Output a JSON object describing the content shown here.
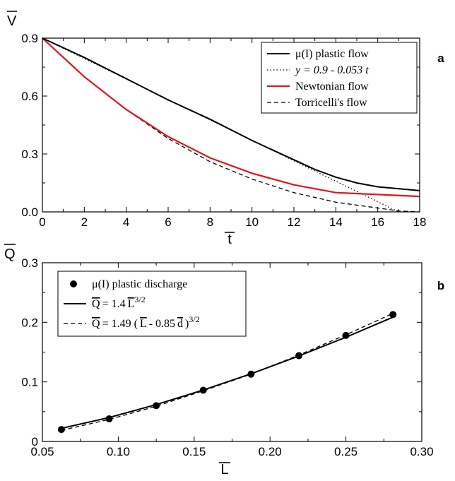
{
  "chart_data": [
    {
      "panel_label": "a",
      "type": "line",
      "ylabel": "V",
      "xlabel": "t",
      "xlim": [
        0,
        18
      ],
      "ylim": [
        0,
        0.9
      ],
      "xticks": [
        "0",
        "2",
        "4",
        "6",
        "8",
        "10",
        "12",
        "14",
        "16",
        "18"
      ],
      "yticks": [
        "0.0",
        "0.3",
        "0.6",
        "0.9"
      ],
      "legend_position": "top-right",
      "grid": false,
      "series": [
        {
          "name": "μ(I) plastic flow",
          "style": "solid",
          "color": "#000000",
          "x": [
            0,
            2,
            4,
            6,
            8,
            10,
            12,
            13,
            14,
            15,
            16,
            18
          ],
          "y": [
            0.9,
            0.8,
            0.69,
            0.58,
            0.48,
            0.37,
            0.27,
            0.22,
            0.18,
            0.15,
            0.13,
            0.11
          ]
        },
        {
          "name": "y = 0.9 - 0.053 t",
          "style": "dotted",
          "color": "#000000",
          "x": [
            0,
            17
          ],
          "y": [
            0.9,
            0.0
          ]
        },
        {
          "name": "Newtonian flow",
          "style": "solid",
          "color": "#e0141e",
          "x": [
            0,
            1,
            2,
            4,
            6,
            8,
            10,
            12,
            14,
            16,
            18
          ],
          "y": [
            0.9,
            0.8,
            0.7,
            0.53,
            0.39,
            0.28,
            0.2,
            0.14,
            0.1,
            0.09,
            0.08
          ]
        },
        {
          "name": "Torricelli's flow",
          "style": "dashed",
          "color": "#000000",
          "x": [
            0,
            2,
            4,
            6,
            8,
            10,
            12,
            14,
            16,
            17,
            18
          ],
          "y": [
            0.9,
            0.7,
            0.53,
            0.38,
            0.26,
            0.17,
            0.1,
            0.05,
            0.02,
            0.005,
            0.0
          ]
        }
      ]
    },
    {
      "panel_label": "b",
      "type": "scatter",
      "ylabel": "Q",
      "xlabel": "L",
      "xlim": [
        0.05,
        0.3
      ],
      "ylim": [
        0,
        0.3
      ],
      "xticks": [
        "0.05",
        "0.10",
        "0.15",
        "0.20",
        "0.25",
        "0.30"
      ],
      "yticks": [
        "0",
        "0.1",
        "0.2",
        "0.3"
      ],
      "legend_position": "top-left",
      "grid": false,
      "series": [
        {
          "name": "μ(I) plastic discharge",
          "style": "markers",
          "color": "#000000",
          "x": [
            0.0625,
            0.094,
            0.125,
            0.156,
            0.1875,
            0.219,
            0.25,
            0.281
          ],
          "y": [
            0.02,
            0.038,
            0.06,
            0.086,
            0.113,
            0.144,
            0.178,
            0.213
          ]
        },
        {
          "name": "Q = 1.4 L^3/2",
          "legend_parts": [
            "Q",
            "= 1.4",
            "L",
            "3/2"
          ],
          "style": "solid",
          "color": "#000000",
          "x": [
            0.0625,
            0.094,
            0.125,
            0.156,
            0.1875,
            0.219,
            0.25,
            0.281
          ],
          "y": [
            0.0219,
            0.0402,
            0.0619,
            0.0863,
            0.1136,
            0.1435,
            0.175,
            0.2086
          ]
        },
        {
          "name": "Q = 1.49 (L - 0.85 d)^3/2",
          "legend_parts": [
            "Q",
            "= 1.49 (",
            "L",
            "- 0.85",
            "d",
            ")",
            "3/2"
          ],
          "style": "dashed",
          "color": "#000000",
          "x": [
            0.0625,
            0.094,
            0.125,
            0.156,
            0.1875,
            0.219,
            0.25,
            0.281
          ],
          "y": [
            0.0185,
            0.037,
            0.059,
            0.085,
            0.113,
            0.145,
            0.179,
            0.215
          ]
        }
      ]
    }
  ]
}
